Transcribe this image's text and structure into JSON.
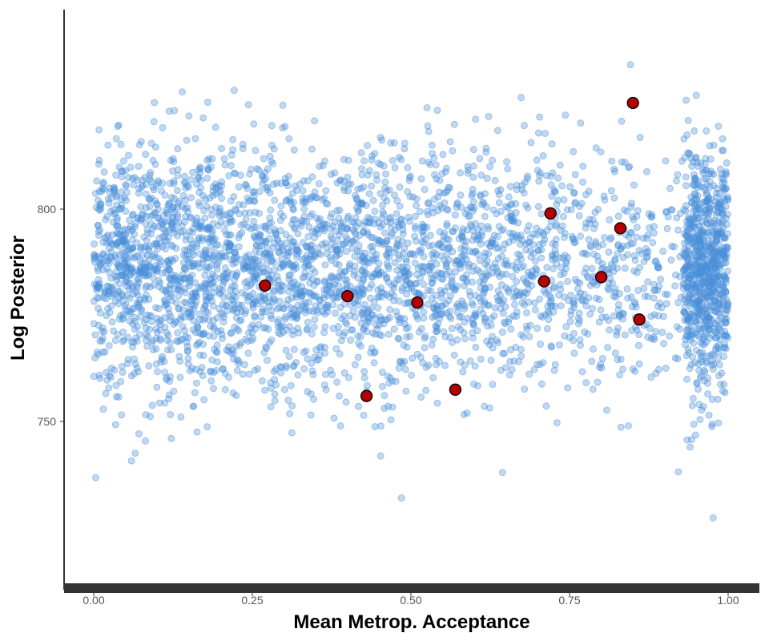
{
  "chart_data": {
    "type": "scatter",
    "title": "",
    "xlabel": "Mean Metrop. Acceptance",
    "ylabel": "Log Posterior",
    "xlim": [
      -0.05,
      1.05
    ],
    "ylim": [
      712,
      842
    ],
    "x_ticks": [
      0,
      0.25,
      0.5,
      0.75,
      1
    ],
    "x_tick_labels": [
      "0.00",
      "0.25",
      "0.50",
      "0.75",
      "1.00"
    ],
    "y_ticks": [
      750,
      800
    ],
    "y_tick_labels": [
      "750",
      "800"
    ],
    "grid": false,
    "legend": "none",
    "series": [
      {
        "role": "draws",
        "color": "#4a90d9",
        "point_count_approx": 4000,
        "distribution": {
          "x": "skewed toward 1.00, densest at 0.95-1.00",
          "y_center": 786,
          "y_sd": 14,
          "y_range": [
            719,
            838
          ]
        }
      },
      {
        "role": "highlighted",
        "color": "#b30000",
        "points": [
          {
            "x": 0.27,
            "y": 782
          },
          {
            "x": 0.4,
            "y": 779.5
          },
          {
            "x": 0.43,
            "y": 756
          },
          {
            "x": 0.51,
            "y": 778
          },
          {
            "x": 0.57,
            "y": 757.5
          },
          {
            "x": 0.71,
            "y": 783
          },
          {
            "x": 0.72,
            "y": 799
          },
          {
            "x": 0.8,
            "y": 784
          },
          {
            "x": 0.83,
            "y": 795.5
          },
          {
            "x": 0.85,
            "y": 825
          },
          {
            "x": 0.86,
            "y": 774
          }
        ]
      }
    ]
  }
}
